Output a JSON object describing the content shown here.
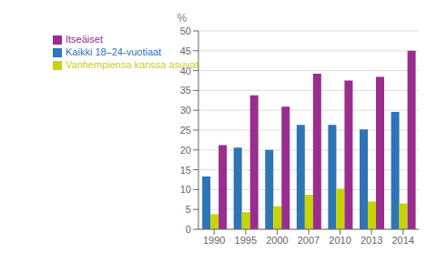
{
  "chart_data": {
    "type": "bar",
    "categories": [
      "1990",
      "1995",
      "2000",
      "2007",
      "2010",
      "2013",
      "2014"
    ],
    "series": [
      {
        "name": "Kaikki 18–24-vuotiaat",
        "color": "#2E75B6",
        "values": [
          13.3,
          20.6,
          20.0,
          26.3,
          26.3,
          25.2,
          29.6
        ]
      },
      {
        "name": "Vanhempiensa kanssa asuvat",
        "color": "#C8D400",
        "values": [
          3.8,
          4.3,
          5.8,
          8.7,
          10.2,
          7.0,
          6.5
        ]
      },
      {
        "name": "Itseäiset",
        "color": "#9B2D8E",
        "values": [
          21.2,
          33.8,
          30.9,
          39.2,
          37.5,
          38.4,
          45.0
        ]
      }
    ],
    "ylabel": "%",
    "ylim": [
      0,
      50
    ],
    "yticks": [
      0,
      5,
      10,
      15,
      20,
      25,
      30,
      35,
      40,
      45,
      50
    ],
    "grid": true,
    "legend": "upper left"
  }
}
